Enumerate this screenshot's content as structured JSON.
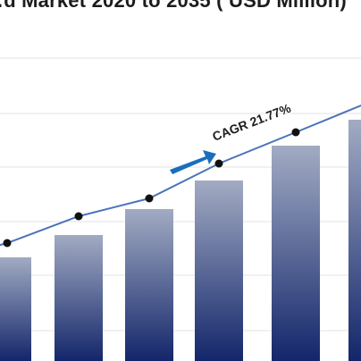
{
  "chart_data": {
    "type": "bar",
    "title": "…d Market 2020 to 2035 ( USD Million)",
    "categories": [
      "",
      "",
      "",
      "",
      "",
      ""
    ],
    "values": [
      116,
      141,
      170,
      202,
      241,
      270
    ],
    "trend_line": [
      132,
      162,
      182,
      221,
      256,
      282
    ],
    "annotation": "CAGR 21.77%",
    "grid": true,
    "legend": "none",
    "ylim": [
      0,
      340
    ],
    "colors": {
      "bar_top": "#a2abc3",
      "bar_bottom": "#13266a",
      "line": "#4b74b9",
      "marker": "#111111",
      "arrow": "#1a6fba",
      "grid": "#e3e3e3"
    }
  }
}
